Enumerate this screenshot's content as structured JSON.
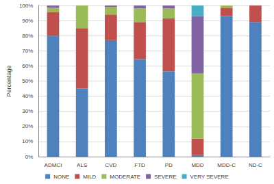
{
  "chart_data": {
    "type": "bar",
    "stacked": true,
    "grid": true,
    "legend": "bottom",
    "y_label": "Percentage",
    "categories": [
      "ADMCI",
      "ALS",
      "CVD",
      "FTD",
      "PD",
      "MDD",
      "MDD-C",
      "ND-C"
    ],
    "series": [
      {
        "name": "NONE",
        "color": "#4f81bd",
        "values": [
          80,
          45,
          77,
          64.5,
          56.5,
          1,
          93,
          89
        ]
      },
      {
        "name": "MILD",
        "color": "#c0504d",
        "values": [
          15.5,
          40,
          17,
          24.5,
          35,
          11,
          5.5,
          11
        ]
      },
      {
        "name": "MODERATE",
        "color": "#9bbb59",
        "values": [
          3,
          15,
          5,
          9,
          6.5,
          43,
          1.5,
          0
        ]
      },
      {
        "name": "SEVERE",
        "color": "#8064a2",
        "values": [
          1.5,
          0,
          1,
          2,
          2,
          38,
          0,
          0
        ]
      },
      {
        "name": "VERY SEVERE",
        "color": "#4bacc6",
        "values": [
          0,
          0,
          0,
          0,
          0,
          7,
          0,
          0
        ]
      }
    ],
    "ylim": [
      0,
      100
    ],
    "yticks": [
      {
        "value": 0,
        "label": "0%"
      },
      {
        "value": 10,
        "label": "10%"
      },
      {
        "value": 20,
        "label": "20%"
      },
      {
        "value": 30,
        "label": "30%"
      },
      {
        "value": 40,
        "label": "40%"
      },
      {
        "value": 50,
        "label": "50%"
      },
      {
        "value": 60,
        "label": "60%"
      },
      {
        "value": 70,
        "label": "70%"
      },
      {
        "value": 80,
        "label": "80%"
      },
      {
        "value": 90,
        "label": "90%"
      },
      {
        "value": 100,
        "label": "100%"
      }
    ]
  }
}
